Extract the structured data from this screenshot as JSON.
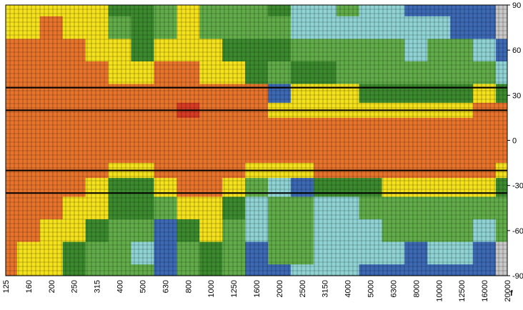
{
  "chart_data": {
    "type": "heatmap",
    "title": "",
    "xlabel": "f",
    "ylabel": "",
    "x_scale": "log",
    "x_ticks": [
      "125",
      "160",
      "200",
      "250",
      "315",
      "400",
      "500",
      "630",
      "800",
      "1000",
      "1250",
      "1600",
      "2000",
      "2500",
      "3150",
      "4000",
      "5000",
      "6300",
      "8000",
      "10000",
      "12500",
      "16000",
      "20000"
    ],
    "y_ticks": [
      90,
      60,
      30,
      0,
      -30,
      -60,
      -90
    ],
    "ylim": [
      -90,
      90
    ],
    "grid": true,
    "reference_lines_y": [
      35,
      20,
      -20,
      -35
    ],
    "palette": [
      "#c8c8c8",
      "#3d69b4",
      "#8fd3d4",
      "#62ad4a",
      "#3c8a2e",
      "#f5e11c",
      "#e8742c",
      "#d83b24"
    ],
    "levels_order_low_to_high": [
      "gray",
      "blue",
      "light-blue",
      "light-green",
      "green",
      "yellow",
      "orange",
      "red"
    ],
    "rows_y": [
      90,
      75,
      60,
      45,
      30,
      20,
      10,
      0,
      -10,
      -20,
      -30,
      -45,
      -60,
      -75,
      -90
    ],
    "z": [
      [
        5,
        5,
        5,
        5,
        5,
        4,
        4,
        3,
        5,
        3,
        3,
        3,
        4,
        2,
        2,
        3,
        2,
        2,
        1,
        1,
        1,
        1,
        0
      ],
      [
        5,
        5,
        6,
        5,
        5,
        3,
        4,
        3,
        5,
        3,
        3,
        3,
        3,
        2,
        2,
        2,
        2,
        2,
        2,
        2,
        1,
        1,
        0
      ],
      [
        6,
        6,
        6,
        6,
        5,
        5,
        4,
        5,
        5,
        5,
        4,
        4,
        4,
        3,
        3,
        3,
        3,
        3,
        2,
        3,
        3,
        2,
        1
      ],
      [
        6,
        6,
        6,
        6,
        6,
        5,
        5,
        6,
        6,
        5,
        5,
        4,
        3,
        4,
        4,
        3,
        3,
        3,
        3,
        3,
        3,
        3,
        2
      ],
      [
        6,
        6,
        6,
        6,
        6,
        6,
        6,
        6,
        6,
        6,
        6,
        6,
        1,
        5,
        5,
        5,
        4,
        4,
        4,
        4,
        4,
        5,
        4
      ],
      [
        6,
        6,
        6,
        6,
        6,
        6,
        6,
        6,
        7,
        6,
        6,
        6,
        5,
        5,
        5,
        5,
        5,
        5,
        5,
        5,
        5,
        6,
        6
      ],
      [
        6,
        6,
        6,
        6,
        6,
        6,
        6,
        6,
        6,
        6,
        6,
        6,
        6,
        6,
        6,
        6,
        6,
        6,
        6,
        6,
        6,
        6,
        6
      ],
      [
        6,
        6,
        6,
        6,
        6,
        6,
        6,
        6,
        6,
        6,
        6,
        6,
        6,
        6,
        6,
        6,
        6,
        6,
        6,
        6,
        6,
        6,
        6
      ],
      [
        6,
        6,
        6,
        6,
        6,
        6,
        6,
        6,
        6,
        6,
        6,
        6,
        6,
        6,
        6,
        6,
        6,
        6,
        6,
        6,
        6,
        6,
        6
      ],
      [
        6,
        6,
        6,
        6,
        6,
        5,
        5,
        6,
        6,
        6,
        6,
        5,
        5,
        5,
        6,
        6,
        6,
        6,
        6,
        6,
        6,
        6,
        5
      ],
      [
        6,
        6,
        6,
        6,
        5,
        4,
        4,
        5,
        6,
        6,
        5,
        3,
        2,
        1,
        4,
        4,
        4,
        5,
        5,
        5,
        5,
        5,
        4
      ],
      [
        6,
        6,
        6,
        5,
        5,
        4,
        4,
        3,
        5,
        5,
        4,
        2,
        3,
        3,
        2,
        2,
        3,
        3,
        3,
        3,
        3,
        3,
        3
      ],
      [
        6,
        6,
        5,
        5,
        4,
        3,
        3,
        1,
        4,
        5,
        3,
        2,
        3,
        3,
        2,
        2,
        2,
        3,
        3,
        3,
        3,
        2,
        3
      ],
      [
        6,
        5,
        5,
        4,
        3,
        3,
        2,
        1,
        3,
        4,
        3,
        1,
        3,
        3,
        2,
        2,
        2,
        2,
        1,
        2,
        2,
        1,
        0
      ],
      [
        6,
        5,
        5,
        4,
        3,
        3,
        3,
        1,
        3,
        4,
        3,
        1,
        1,
        2,
        2,
        2,
        1,
        1,
        1,
        1,
        1,
        1,
        0
      ]
    ]
  }
}
